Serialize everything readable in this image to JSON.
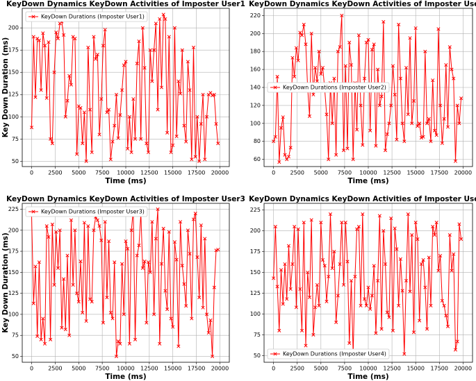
{
  "chart_data": [
    {
      "type": "line",
      "title": "KeyDown Dynamics KeyDown Activities of Imposter User1",
      "xlabel": "Time (ms)",
      "ylabel": "Key Down Duration (ms)",
      "x": [
        0,
        200,
        400,
        600,
        800,
        1000,
        1200,
        1400,
        1600,
        1800,
        2000,
        2200,
        2400,
        2600,
        2800,
        3000,
        3200,
        3400,
        3600,
        3800,
        4000,
        4200,
        4400,
        4600,
        4800,
        5000,
        5200,
        5400,
        5600,
        5800,
        6000,
        6200,
        6400,
        6600,
        6800,
        7000,
        7200,
        7400,
        7600,
        7800,
        8000,
        8200,
        8400,
        8600,
        8800,
        9000,
        9200,
        9400,
        9600,
        9800,
        10000,
        10200,
        10400,
        10600,
        10800,
        11000,
        11200,
        11400,
        11600,
        11800,
        12000,
        12200,
        12400,
        12600,
        12800,
        13000,
        13200,
        13400,
        13600,
        13800,
        14000,
        14200,
        14400,
        14600,
        14800,
        15000,
        15200,
        15400,
        15600,
        15800,
        16000,
        16200,
        16400,
        16600,
        16800,
        17000,
        17200,
        17400,
        17600,
        17800,
        18000,
        18200,
        18400,
        18600,
        18800,
        19000,
        19200,
        19400,
        19600,
        19800
      ],
      "series": [
        {
          "name": "KeyDown Durations (Imposter User1)",
          "color": "#ff0000",
          "values": [
            88,
            190,
            122,
            188,
            186,
            130,
            194,
            180,
            121,
            184,
            75,
            70,
            150,
            195,
            188,
            205,
            207,
            192,
            100,
            118,
            146,
            136,
            190,
            188,
            58,
            112,
            110,
            70,
            105,
            50,
            178,
            108,
            60,
            190,
            165,
            170,
            80,
            120,
            180,
            198,
            105,
            108,
            52,
            72,
            90,
            125,
            76,
            102,
            130,
            158,
            162,
            64,
            100,
            60,
            120,
            75,
            160,
            185,
            75,
            200,
            155,
            70,
            60,
            175,
            140,
            175,
            205,
            108,
            210,
            133,
            215,
            210,
            82,
            190,
            60,
            68,
            200,
            78,
            140,
            126,
            175,
            90,
            72,
            162,
            130,
            52,
            178,
            55,
            100,
            50,
            92,
            125,
            52,
            100,
            125,
            127,
            124,
            125,
            92,
            70
          ]
        }
      ],
      "xlim": [
        -1000,
        21000
      ],
      "ylim": [
        44,
        222
      ],
      "xticks": [
        0,
        2500,
        5000,
        7500,
        10000,
        12500,
        15000,
        17500,
        20000
      ],
      "yticks": [
        50,
        75,
        100,
        125,
        150,
        175,
        200
      ],
      "grid": true,
      "legend": "upper left"
    },
    {
      "type": "line",
      "title": "KeyDown Dynamics KeyDown Activities of Imposter User2",
      "xlabel": "Time (ms)",
      "x": [
        0,
        200,
        400,
        600,
        800,
        1000,
        1200,
        1400,
        1600,
        1800,
        2000,
        2200,
        2400,
        2600,
        2800,
        3000,
        3200,
        3400,
        3600,
        3800,
        4000,
        4200,
        4400,
        4600,
        4800,
        5000,
        5200,
        5400,
        5600,
        5800,
        6000,
        6200,
        6400,
        6600,
        6800,
        7000,
        7200,
        7400,
        7600,
        7800,
        8000,
        8200,
        8400,
        8600,
        8800,
        9000,
        9200,
        9400,
        9600,
        9800,
        10000,
        10200,
        10400,
        10600,
        10800,
        11000,
        11200,
        11400,
        11600,
        11800,
        12000,
        12200,
        12400,
        12600,
        12800,
        13000,
        13200,
        13400,
        13600,
        13800,
        14000,
        14200,
        14400,
        14600,
        14800,
        15000,
        15200,
        15400,
        15600,
        15800,
        16000,
        16200,
        16400,
        16600,
        16800,
        17000,
        17200,
        17400,
        17600,
        17800,
        18000,
        18200,
        18400,
        18600,
        18800,
        19000,
        19200,
        19400,
        19600,
        19800
      ],
      "series": [
        {
          "name": "KeyDown Durations (Imposter User2)",
          "color": "#ff0000",
          "values": [
            80,
            85,
            152,
            57,
            95,
            107,
            65,
            60,
            63,
            73,
            173,
            152,
            184,
            170,
            201,
            198,
            210,
            188,
            140,
            108,
            200,
            132,
            162,
            147,
            180,
            155,
            162,
            138,
            110,
            60,
            145,
            100,
            150,
            65,
            180,
            185,
            220,
            70,
            164,
            72,
            190,
            165,
            60,
            145,
            93,
            198,
            120,
            76,
            150,
            190,
            193,
            92,
            182,
            188,
            75,
            160,
            120,
            130,
            213,
            70,
            88,
            100,
            120,
            164,
            132,
            82,
            210,
            150,
            100,
            80,
            162,
            110,
            195,
            100,
            125,
            206,
            97,
            100,
            84,
            85,
            180,
            100,
            105,
            80,
            148,
            92,
            87,
            205,
            120,
            78,
            105,
            165,
            96,
            185,
            160,
            150,
            58,
            120,
            100,
            128
          ]
        }
      ],
      "xlim": [
        -1000,
        21000
      ],
      "ylim": [
        52,
        228
      ],
      "xticks": [
        0,
        2500,
        5000,
        7500,
        10000,
        12500,
        15000,
        17500,
        20000
      ],
      "yticks": [
        60,
        80,
        100,
        120,
        140,
        160,
        180,
        200,
        220
      ],
      "grid": true,
      "legend": "center left"
    },
    {
      "type": "line",
      "title": "KeyDown Dynamics KeyDown Activities of Imposter User3",
      "xlabel": "Time (ms)",
      "ylabel": "Key Down Duration (ms)",
      "x": [
        0,
        200,
        400,
        600,
        800,
        1000,
        1200,
        1400,
        1600,
        1800,
        2000,
        2200,
        2400,
        2600,
        2800,
        3000,
        3200,
        3400,
        3600,
        3800,
        4000,
        4200,
        4400,
        4600,
        4800,
        5000,
        5200,
        5400,
        5600,
        5800,
        6000,
        6200,
        6400,
        6600,
        6800,
        7000,
        7200,
        7400,
        7600,
        7800,
        8000,
        8200,
        8400,
        8600,
        8800,
        9000,
        9200,
        9400,
        9600,
        9800,
        10000,
        10200,
        10400,
        10600,
        10800,
        11000,
        11200,
        11400,
        11600,
        11800,
        12000,
        12200,
        12400,
        12600,
        12800,
        13000,
        13200,
        13400,
        13600,
        13800,
        14000,
        14200,
        14400,
        14600,
        14800,
        15000,
        15200,
        15400,
        15600,
        15800,
        16000,
        16200,
        16400,
        16600,
        16800,
        17000,
        17200,
        17400,
        17600,
        17800,
        18000,
        18200,
        18400,
        18600,
        18800,
        19000,
        19200,
        19400,
        19600,
        19800
      ],
      "series": [
        {
          "name": "KeyDown Durations (Imposter User3)",
          "color": "#ff0000",
          "values": [
            218,
            113,
            157,
            74,
            162,
            70,
            95,
            65,
            205,
            192,
            70,
            207,
            135,
            198,
            155,
            200,
            84,
            142,
            82,
            170,
            75,
            212,
            135,
            200,
            125,
            115,
            163,
            102,
            209,
            92,
            205,
            118,
            115,
            200,
            216,
            212,
            205,
            188,
            90,
            210,
            120,
            187,
            102,
            95,
            162,
            50,
            68,
            65,
            160,
            100,
            187,
            178,
            65,
            200,
            225,
            70,
            170,
            182,
            220,
            155,
            163,
            90,
            162,
            150,
            210,
            100,
            190,
            225,
            65,
            160,
            202,
            128,
            106,
            198,
            95,
            85,
            186,
            165,
            62,
            210,
            158,
            136,
            110,
            200,
            172,
            95,
            213,
            220,
            168,
            120,
            206,
            108,
            190,
            100,
            78,
            93,
            50,
            132,
            176,
            177
          ]
        }
      ],
      "xlim": [
        -1000,
        21000
      ],
      "ylim": [
        43,
        232
      ],
      "xticks": [
        0,
        2500,
        5000,
        7500,
        10000,
        12500,
        15000,
        17500,
        20000
      ],
      "yticks": [
        50,
        75,
        100,
        125,
        150,
        175,
        200,
        225
      ],
      "grid": true,
      "legend": "upper left"
    },
    {
      "type": "line",
      "title": "KeyDown Dynamics KeyDown Activities of Imposter User4",
      "xlabel": "Time (ms)",
      "x": [
        0,
        200,
        400,
        600,
        800,
        1000,
        1200,
        1400,
        1600,
        1800,
        2000,
        2200,
        2400,
        2600,
        2800,
        3000,
        3200,
        3400,
        3600,
        3800,
        4000,
        4200,
        4400,
        4600,
        4800,
        5000,
        5200,
        5400,
        5600,
        5800,
        6000,
        6200,
        6400,
        6600,
        6800,
        7000,
        7200,
        7400,
        7600,
        7800,
        8000,
        8200,
        8400,
        8600,
        8800,
        9000,
        9200,
        9400,
        9600,
        9800,
        10000,
        10200,
        10400,
        10600,
        10800,
        11000,
        11200,
        11400,
        11600,
        11800,
        12000,
        12200,
        12400,
        12600,
        12800,
        13000,
        13200,
        13400,
        13600,
        13800,
        14000,
        14200,
        14400,
        14600,
        14800,
        15000,
        15200,
        15400,
        15600,
        15800,
        16000,
        16200,
        16400,
        16600,
        16800,
        17000,
        17200,
        17400,
        17600,
        17800,
        18000,
        18200,
        18400,
        18600,
        18800,
        19000,
        19200,
        19400,
        19600,
        19800
      ],
      "series": [
        {
          "name": "KeyDown Durations (Imposter User4)",
          "color": "#ff0000",
          "values": [
            143,
            205,
            133,
            80,
            153,
            112,
            160,
            118,
            182,
            130,
            160,
            205,
            108,
            202,
            130,
            80,
            210,
            62,
            150,
            120,
            213,
            75,
            108,
            135,
            110,
            210,
            165,
            158,
            115,
            145,
            220,
            155,
            175,
            90,
            122,
            160,
            210,
            135,
            210,
            163,
            65,
            140,
            52,
            145,
            202,
            205,
            110,
            220,
            118,
            110,
            132,
            106,
            122,
            158,
            77,
            140,
            218,
            82,
            200,
            160,
            102,
            96,
            215,
            80,
            203,
            178,
            110,
            166,
            128,
            52,
            140,
            220,
            127,
            195,
            78,
            210,
            190,
            92,
            160,
            165,
            132,
            82,
            168,
            110,
            205,
            195,
            210,
            152,
            170,
            116,
            110,
            98,
            85,
            195,
            152,
            172,
            57,
            67,
            208,
            190
          ]
        }
      ],
      "xlim": [
        -1000,
        21000
      ],
      "ylim": [
        42,
        233
      ],
      "xticks": [
        0,
        2500,
        5000,
        7500,
        10000,
        12500,
        15000,
        17500,
        20000
      ],
      "yticks": [
        50,
        75,
        100,
        125,
        150,
        175,
        200,
        225
      ],
      "grid": true,
      "legend": "lower left"
    }
  ]
}
